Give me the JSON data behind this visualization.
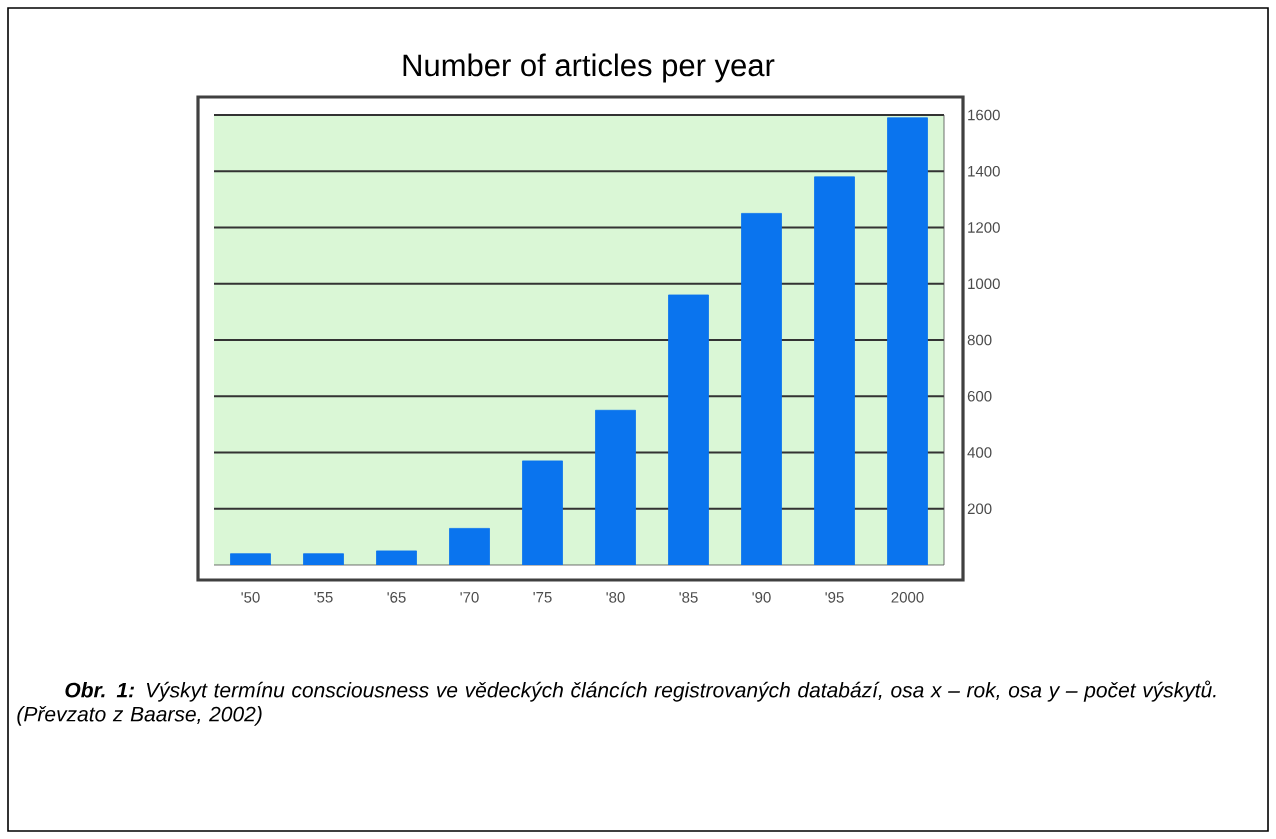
{
  "chart_data": {
    "type": "bar",
    "title": "Number of articles per year",
    "categories": [
      "'50",
      "'55",
      "'65",
      "'70",
      "'75",
      "'80",
      "'85",
      "'90",
      "'95",
      "2000"
    ],
    "values": [
      40,
      40,
      50,
      130,
      370,
      550,
      960,
      1250,
      1380,
      1590
    ],
    "color": "#0a74ee",
    "ylim": [
      0,
      1600
    ],
    "yticks": [
      200,
      400,
      600,
      800,
      1000,
      1200,
      1400,
      1600
    ],
    "grid": "y",
    "annotations": [
      "**Obr. 1:** Výskyt termínu *consciousness* ve vědeckých článcích registrovaných databází, osa x – rok, osa y – počet výskytů. (Převzato z Baarse, 2002)"
    ]
  }
}
